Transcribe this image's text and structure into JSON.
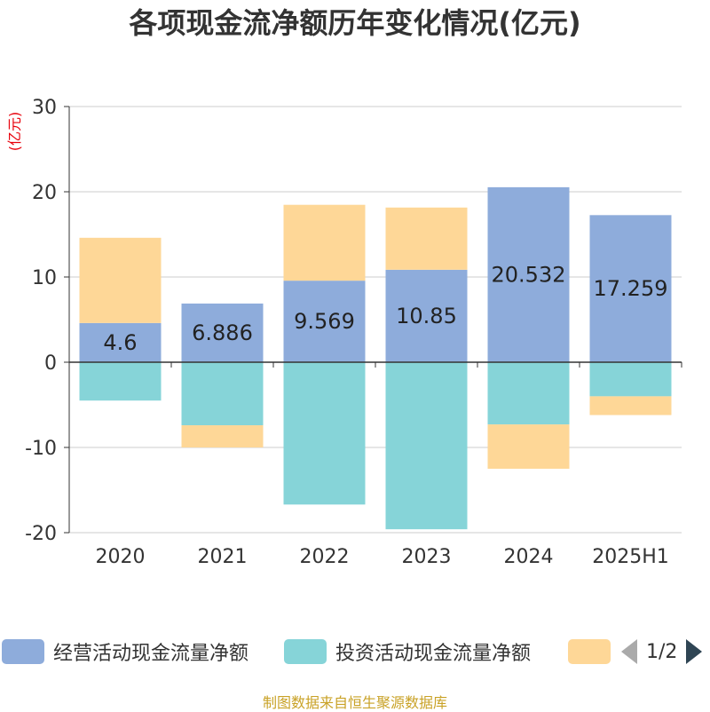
{
  "title": "各项现金流净额历年变化情况(亿元)",
  "source": "制图数据来自恒生聚源数据库",
  "legend": {
    "items": [
      {
        "label": "经营活动现金流量净额",
        "color": "#8eacdb"
      },
      {
        "label": "投资活动现金流量净额",
        "color": "#86d4d8"
      },
      {
        "label": "",
        "color": "#fed797"
      }
    ],
    "page": "1/2"
  },
  "chart_data": {
    "type": "bar",
    "stacked": true,
    "categories": [
      "2020",
      "2021",
      "2022",
      "2023",
      "2024",
      "2025H1"
    ],
    "ylabel": "(亿元)",
    "ylim": [
      -20,
      30
    ],
    "yticks": [
      -20,
      -10,
      0,
      10,
      20,
      30
    ],
    "grid": true,
    "legend_position": "bottom",
    "series": [
      {
        "name": "经营活动现金流量净额",
        "color": "#8eacdb",
        "values": [
          4.6,
          6.886,
          9.569,
          10.85,
          20.532,
          17.259
        ],
        "labels": [
          "4.6",
          "6.886",
          "9.569",
          "10.85",
          "20.532",
          "17.259"
        ]
      },
      {
        "name": "投资活动现金流量净额",
        "color": "#86d4d8",
        "values": [
          -4.5,
          -7.4,
          -16.7,
          -19.6,
          -7.3,
          -4.0
        ]
      },
      {
        "name": "",
        "color": "#fed797",
        "values": [
          10.0,
          -2.6,
          8.9,
          7.3,
          -5.2,
          -2.2
        ]
      }
    ]
  }
}
